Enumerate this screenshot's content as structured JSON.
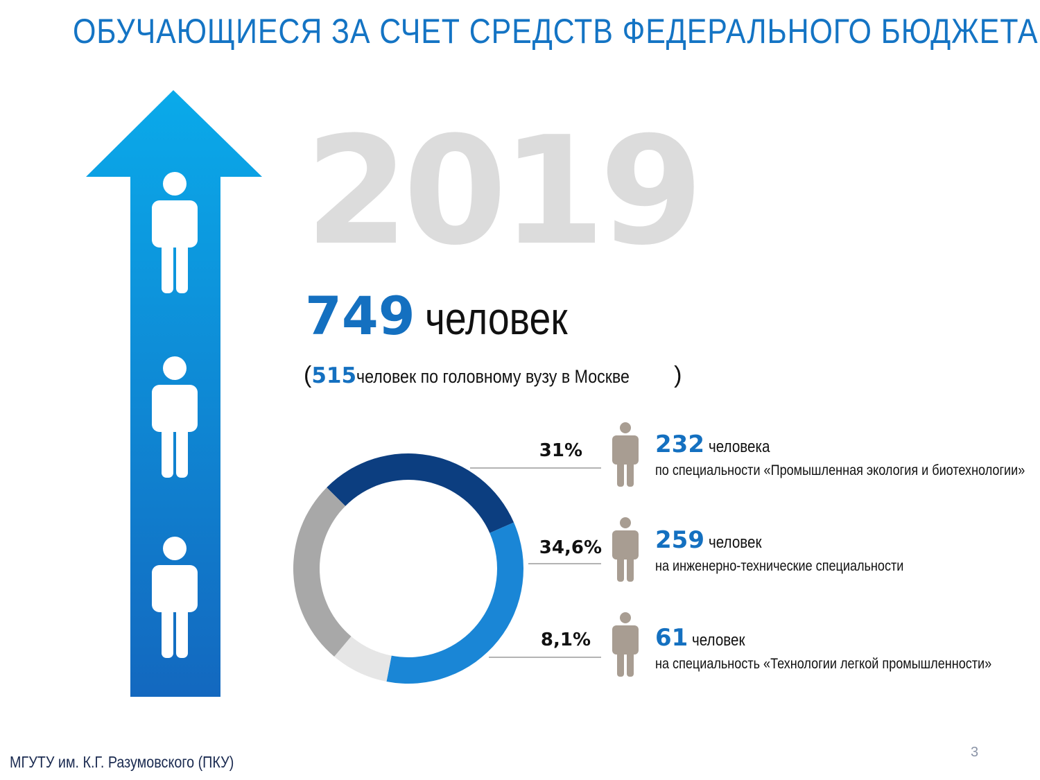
{
  "title": "ОБУЧАЮЩИЕСЯ ЗА СЧЕТ СРЕДСТВ ФЕДЕРАЛЬНОГО БЮДЖЕТА",
  "year": "2019",
  "total": {
    "value": "749",
    "unit": "человек"
  },
  "subtotal": {
    "open": "(",
    "value": "515",
    "text": " человек по головному вузу в Москве",
    "close": ")"
  },
  "icons": {
    "arrow": "arrow-up-icon",
    "person": "person-icon"
  },
  "colors": {
    "title": "#1474c4",
    "accent": "#1470c0",
    "year": "#dcdcdc",
    "person_gray": "#a89d92",
    "arrow_top": "#0aaaea",
    "arrow_bottom": "#1368bf"
  },
  "chart_data": {
    "type": "pie",
    "variant": "donut",
    "slices": [
      {
        "label": "31%",
        "value": 31,
        "color": "#0c3e80"
      },
      {
        "label": "34,6%",
        "value": 34.6,
        "color": "#1a86d6"
      },
      {
        "label": "8,1%",
        "value": 8.1,
        "color": "#e6e6e6"
      },
      {
        "label": "",
        "value": 26.3,
        "color": "#a8a8a8"
      }
    ]
  },
  "stats": [
    {
      "value": "232",
      "unit": "человека",
      "desc": "по специальности «Промышленная экология и биотехнологии»"
    },
    {
      "value": "259",
      "unit": "человек",
      "desc": "на инженерно-технические специальности"
    },
    {
      "value": "61",
      "unit": "человек",
      "desc": "на специальность «Технологии легкой промышленности»"
    }
  ],
  "footer": "МГУТУ им. К.Г. Разумовского (ПКУ)",
  "page_number": "3"
}
